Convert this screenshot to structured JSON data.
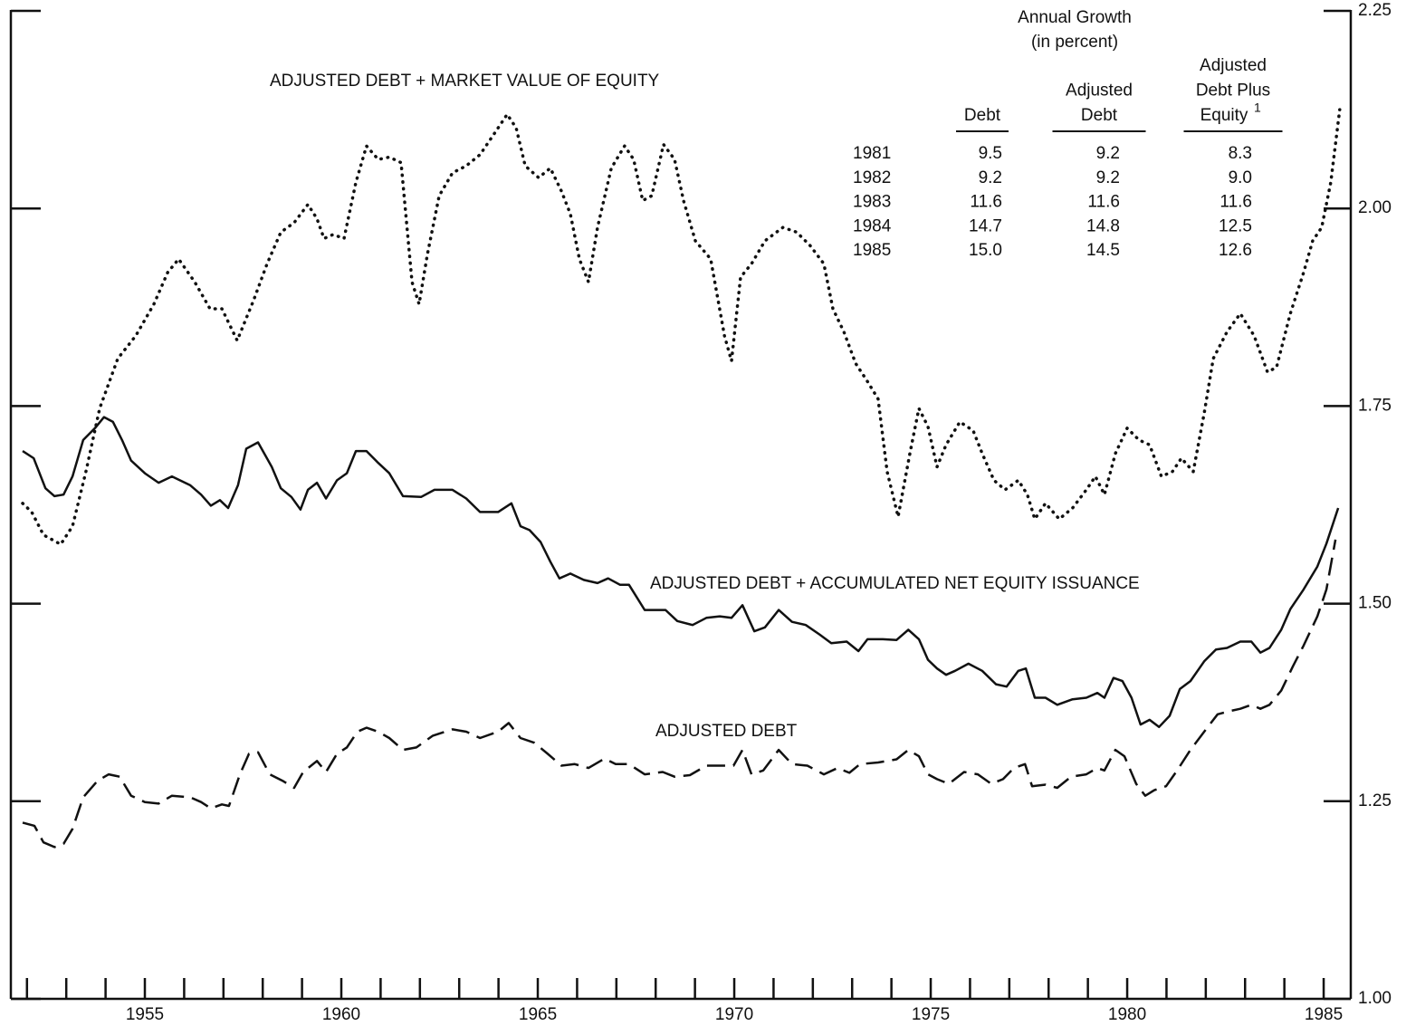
{
  "chart_data": {
    "type": "line",
    "xlim": [
      1951.59,
      1985.69
    ],
    "ylim": [
      1,
      2.25
    ],
    "xticks": [
      1955,
      1960,
      1965,
      1970,
      1975,
      1980,
      1985
    ],
    "xminorticks": [
      1952,
      1953,
      1954,
      1955,
      1956,
      1957,
      1958,
      1959,
      1960,
      1961,
      1962,
      1963,
      1964,
      1965,
      1966,
      1967,
      1968,
      1969,
      1970,
      1971,
      1972,
      1973,
      1974,
      1975,
      1976,
      1977,
      1978,
      1979,
      1980,
      1981,
      1982,
      1983,
      1984,
      1985
    ],
    "yticks": [
      {
        "value": 1,
        "label": "1.00"
      },
      1.25,
      {
        "value": 1.5,
        "label": "1.50"
      },
      1.75,
      {
        "value": 2,
        "label": "2.00"
      },
      2.25
    ],
    "series": [
      {
        "name": "ADJUSTED DEBT + MARKET VALUE OF EQUITY",
        "color": "#111111",
        "style": "dotted",
        "x": [
          1951.89,
          1952.12,
          1952.42,
          1952.86,
          1953.16,
          1953.5,
          1953.85,
          1954.31,
          1954.77,
          1955.23,
          1955.58,
          1955.86,
          1956.27,
          1956.66,
          1956.96,
          1957.35,
          1957.77,
          1958.11,
          1958.46,
          1958.8,
          1959.15,
          1959.38,
          1959.56,
          1959.79,
          1960.07,
          1960.37,
          1960.64,
          1960.94,
          1961.22,
          1961.52,
          1961.8,
          1961.98,
          1962.19,
          1962.49,
          1962.83,
          1963.18,
          1963.53,
          1963.87,
          1964.22,
          1964.45,
          1964.68,
          1965.02,
          1965.32,
          1965.6,
          1965.83,
          1966.06,
          1966.29,
          1966.52,
          1966.87,
          1967.21,
          1967.44,
          1967.67,
          1967.9,
          1968.2,
          1968.48,
          1968.71,
          1969.01,
          1969.4,
          1969.75,
          1969.93,
          1970.16,
          1970.44,
          1970.78,
          1971.24,
          1971.59,
          1971.93,
          1972.28,
          1972.51,
          1972.79,
          1973.09,
          1973.39,
          1973.66,
          1973.89,
          1974.17,
          1974.47,
          1974.7,
          1974.93,
          1975.16,
          1975.39,
          1975.74,
          1976.08,
          1976.31,
          1976.61,
          1976.89,
          1977.23,
          1977.46,
          1977.65,
          1977.92,
          1978.27,
          1978.61,
          1978.96,
          1979.19,
          1979.42,
          1979.7,
          1980.0,
          1980.3,
          1980.57,
          1980.87,
          1981.15,
          1981.38,
          1981.68,
          1981.96,
          1982.19,
          1982.54,
          1982.88,
          1983.23,
          1983.57,
          1983.8,
          1984.15,
          1984.49,
          1984.72,
          1984.95,
          1985.18,
          1985.41
        ],
        "values": [
          1.627,
          1.616,
          1.587,
          1.575,
          1.598,
          1.667,
          1.747,
          1.81,
          1.839,
          1.879,
          1.919,
          1.936,
          1.907,
          1.873,
          1.873,
          1.833,
          1.884,
          1.93,
          1.97,
          1.982,
          2.005,
          1.987,
          1.962,
          1.967,
          1.962,
          2.033,
          2.079,
          2.062,
          2.065,
          2.058,
          1.907,
          1.879,
          1.942,
          2.016,
          2.045,
          2.054,
          2.068,
          2.093,
          2.119,
          2.102,
          2.054,
          2.039,
          2.051,
          2.022,
          1.993,
          1.936,
          1.907,
          1.976,
          2.051,
          2.079,
          2.062,
          2.01,
          2.016,
          2.081,
          2.062,
          2.01,
          1.959,
          1.936,
          1.839,
          1.807,
          1.913,
          1.93,
          1.959,
          1.976,
          1.97,
          1.953,
          1.93,
          1.873,
          1.844,
          1.804,
          1.781,
          1.759,
          1.667,
          1.61,
          1.69,
          1.747,
          1.724,
          1.673,
          1.701,
          1.73,
          1.719,
          1.69,
          1.656,
          1.644,
          1.656,
          1.638,
          1.607,
          1.627,
          1.607,
          1.621,
          1.644,
          1.661,
          1.638,
          1.69,
          1.722,
          1.707,
          1.701,
          1.661,
          1.667,
          1.684,
          1.667,
          1.741,
          1.81,
          1.844,
          1.867,
          1.839,
          1.793,
          1.799,
          1.867,
          1.919,
          1.959,
          1.976,
          2.033,
          2.125
        ]
      },
      {
        "name": "ADJUSTED DEBT + ACCUMULATED NET EQUITY ISSUANCE",
        "color": "#111111",
        "style": "solid",
        "x": [
          1951.89,
          1952.17,
          1952.47,
          1952.7,
          1952.93,
          1953.16,
          1953.43,
          1953.73,
          1953.96,
          1954.19,
          1954.42,
          1954.65,
          1955.0,
          1955.35,
          1955.69,
          1956.15,
          1956.43,
          1956.68,
          1956.91,
          1957.12,
          1957.37,
          1957.58,
          1957.88,
          1958.23,
          1958.46,
          1958.73,
          1958.96,
          1959.15,
          1959.38,
          1959.61,
          1959.89,
          1960.14,
          1960.37,
          1960.64,
          1960.94,
          1961.22,
          1961.57,
          1962.03,
          1962.37,
          1962.83,
          1963.18,
          1963.53,
          1963.99,
          1964.33,
          1964.56,
          1964.79,
          1965.07,
          1965.32,
          1965.55,
          1965.83,
          1966.17,
          1966.52,
          1966.79,
          1967.09,
          1967.32,
          1967.72,
          1968.25,
          1968.55,
          1968.94,
          1969.29,
          1969.63,
          1969.93,
          1970.21,
          1970.51,
          1970.78,
          1971.13,
          1971.47,
          1971.82,
          1972.17,
          1972.47,
          1972.86,
          1973.16,
          1973.39,
          1973.78,
          1974.13,
          1974.43,
          1974.7,
          1974.93,
          1975.16,
          1975.39,
          1975.62,
          1975.96,
          1976.31,
          1976.66,
          1976.93,
          1977.23,
          1977.42,
          1977.65,
          1977.92,
          1978.22,
          1978.61,
          1978.96,
          1979.24,
          1979.42,
          1979.65,
          1979.88,
          1980.11,
          1980.34,
          1980.57,
          1980.81,
          1981.08,
          1981.34,
          1981.61,
          1981.96,
          1982.26,
          1982.54,
          1982.88,
          1983.16,
          1983.39,
          1983.62,
          1983.92,
          1984.15,
          1984.49,
          1984.84,
          1985.07,
          1985.37
        ],
        "values": [
          1.693,
          1.684,
          1.646,
          1.636,
          1.638,
          1.661,
          1.707,
          1.722,
          1.736,
          1.73,
          1.707,
          1.681,
          1.665,
          1.653,
          1.661,
          1.65,
          1.638,
          1.624,
          1.631,
          1.621,
          1.65,
          1.696,
          1.704,
          1.673,
          1.646,
          1.635,
          1.619,
          1.644,
          1.653,
          1.633,
          1.656,
          1.665,
          1.693,
          1.693,
          1.678,
          1.665,
          1.636,
          1.635,
          1.644,
          1.644,
          1.633,
          1.616,
          1.616,
          1.627,
          1.598,
          1.593,
          1.578,
          1.553,
          1.532,
          1.538,
          1.53,
          1.526,
          1.532,
          1.524,
          1.524,
          1.492,
          1.492,
          1.478,
          1.473,
          1.482,
          1.484,
          1.482,
          1.498,
          1.465,
          1.47,
          1.492,
          1.477,
          1.473,
          1.461,
          1.45,
          1.452,
          1.44,
          1.455,
          1.455,
          1.454,
          1.467,
          1.455,
          1.429,
          1.418,
          1.41,
          1.415,
          1.424,
          1.415,
          1.398,
          1.395,
          1.415,
          1.418,
          1.381,
          1.381,
          1.372,
          1.379,
          1.381,
          1.387,
          1.381,
          1.406,
          1.402,
          1.381,
          1.347,
          1.353,
          1.344,
          1.358,
          1.392,
          1.402,
          1.427,
          1.442,
          1.444,
          1.452,
          1.452,
          1.438,
          1.444,
          1.467,
          1.493,
          1.518,
          1.547,
          1.576,
          1.621
        ]
      },
      {
        "name": "ADJUSTED DEBT",
        "color": "#111111",
        "style": "dashed",
        "x": [
          1951.89,
          1952.19,
          1952.42,
          1952.7,
          1952.93,
          1953.16,
          1953.43,
          1953.8,
          1954.08,
          1954.36,
          1954.65,
          1955.0,
          1955.35,
          1955.69,
          1956.15,
          1956.43,
          1956.68,
          1956.96,
          1957.14,
          1957.42,
          1957.65,
          1957.88,
          1958.18,
          1958.5,
          1958.8,
          1959.03,
          1959.38,
          1959.61,
          1959.89,
          1960.14,
          1960.41,
          1960.64,
          1960.94,
          1961.22,
          1961.57,
          1961.91,
          1962.33,
          1962.83,
          1963.18,
          1963.53,
          1963.99,
          1964.26,
          1964.56,
          1964.91,
          1965.25,
          1965.6,
          1965.94,
          1966.29,
          1966.7,
          1966.98,
          1967.32,
          1967.72,
          1968.18,
          1968.48,
          1968.87,
          1969.29,
          1969.75,
          1969.98,
          1970.21,
          1970.44,
          1970.74,
          1971.13,
          1971.47,
          1971.86,
          1972.28,
          1972.63,
          1972.93,
          1973.2,
          1973.66,
          1974.13,
          1974.43,
          1974.7,
          1974.93,
          1975.16,
          1975.46,
          1975.85,
          1976.2,
          1976.54,
          1976.84,
          1977.12,
          1977.4,
          1977.58,
          1977.92,
          1978.22,
          1978.57,
          1978.96,
          1979.24,
          1979.42,
          1979.7,
          1979.93,
          1980.23,
          1980.46,
          1980.69,
          1980.99,
          1981.27,
          1981.61,
          1981.96,
          1982.3,
          1982.6,
          1982.88,
          1983.16,
          1983.39,
          1983.62,
          1983.92,
          1984.22,
          1984.49,
          1984.84,
          1985.07,
          1985.3
        ],
        "values": [
          1.223,
          1.219,
          1.198,
          1.192,
          1.196,
          1.215,
          1.255,
          1.276,
          1.284,
          1.281,
          1.257,
          1.249,
          1.247,
          1.257,
          1.255,
          1.249,
          1.241,
          1.246,
          1.244,
          1.284,
          1.31,
          1.312,
          1.284,
          1.276,
          1.267,
          1.287,
          1.301,
          1.287,
          1.31,
          1.318,
          1.338,
          1.343,
          1.338,
          1.33,
          1.315,
          1.318,
          1.333,
          1.341,
          1.338,
          1.33,
          1.338,
          1.349,
          1.33,
          1.324,
          1.31,
          1.295,
          1.297,
          1.292,
          1.304,
          1.297,
          1.297,
          1.284,
          1.287,
          1.281,
          1.283,
          1.295,
          1.295,
          1.295,
          1.315,
          1.284,
          1.289,
          1.315,
          1.297,
          1.295,
          1.284,
          1.292,
          1.286,
          1.297,
          1.299,
          1.303,
          1.315,
          1.307,
          1.284,
          1.278,
          1.272,
          1.287,
          1.284,
          1.272,
          1.278,
          1.292,
          1.297,
          1.269,
          1.271,
          1.267,
          1.281,
          1.284,
          1.292,
          1.289,
          1.315,
          1.307,
          1.272,
          1.257,
          1.264,
          1.269,
          1.289,
          1.315,
          1.338,
          1.36,
          1.364,
          1.367,
          1.372,
          1.367,
          1.372,
          1.39,
          1.421,
          1.447,
          1.484,
          1.518,
          1.581
        ]
      }
    ],
    "table": {
      "title": "Annual Growth",
      "subtitle": "(in percent)",
      "columns": [
        [
          "Debt"
        ],
        [
          "Adjusted",
          "Debt"
        ],
        [
          "Adjusted",
          "Debt Plus",
          "Equity"
        ]
      ],
      "footnote_mark": "1",
      "rows": [
        {
          "year": "1981",
          "values": [
            "9.5",
            "9.2",
            "8.3"
          ]
        },
        {
          "year": "1982",
          "values": [
            "9.2",
            "9.2",
            "9.0"
          ]
        },
        {
          "year": "1983",
          "values": [
            "11.6",
            "11.6",
            "11.6"
          ]
        },
        {
          "year": "1984",
          "values": [
            "14.7",
            "14.8",
            "12.5"
          ]
        },
        {
          "year": "1985",
          "values": [
            "15.0",
            "14.5",
            "12.6"
          ]
        }
      ]
    }
  }
}
